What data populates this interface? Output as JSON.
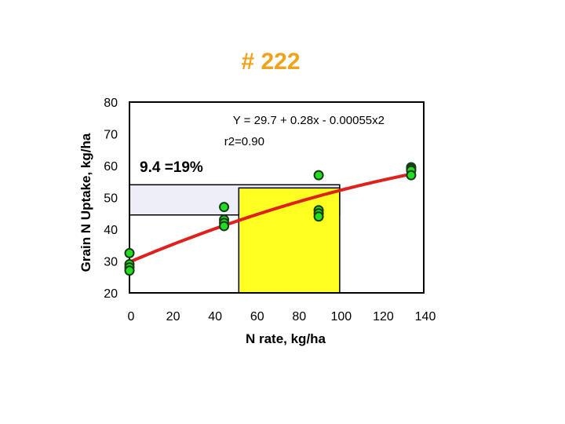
{
  "title": "# 222",
  "chart_data": {
    "type": "scatter",
    "title": "# 222",
    "xlabel": "N rate, kg/ha",
    "ylabel": "Grain N Uptake, kg/ha",
    "xlim": [
      0,
      140
    ],
    "ylim": [
      20,
      80
    ],
    "xticks": [
      0,
      20,
      40,
      60,
      80,
      100,
      120,
      140
    ],
    "yticks": [
      20,
      30,
      40,
      50,
      60,
      70,
      80
    ],
    "series": [
      {
        "points": [
          {
            "x": 0,
            "y": 32.5
          },
          {
            "x": 0,
            "y": 29
          },
          {
            "x": 0,
            "y": 28
          },
          {
            "x": 0,
            "y": 27
          },
          {
            "x": 45,
            "y": 47
          },
          {
            "x": 45,
            "y": 43
          },
          {
            "x": 45,
            "y": 42
          },
          {
            "x": 45,
            "y": 41
          },
          {
            "x": 90,
            "y": 57
          },
          {
            "x": 90,
            "y": 46
          },
          {
            "x": 90,
            "y": 45
          },
          {
            "x": 90,
            "y": 44
          },
          {
            "x": 134,
            "y": 59.5
          },
          {
            "x": 134,
            "y": 59
          },
          {
            "x": 134,
            "y": 58.5
          },
          {
            "x": 134,
            "y": 57
          }
        ]
      }
    ],
    "fit": {
      "a": 29.7,
      "b": 0.28,
      "c": -0.00055,
      "equation": "Y = 29.7 + 0.28x - 0.00055x2",
      "r2": "r2=0.90"
    },
    "annotation": "9.4 =19%",
    "shaded_regions": [
      {
        "x_range": [
          0,
          100
        ],
        "y_range": [
          44.5,
          54
        ],
        "color": "#eeeef8"
      },
      {
        "x_range": [
          52,
          100
        ],
        "y_range": [
          20,
          53
        ],
        "color": "#ffff22"
      }
    ],
    "colors": {
      "title": "#f0a21a",
      "fit_line": "#e0201c",
      "marker_fill": "#22dd22",
      "marker_edge": "#1a3a1a",
      "highlight": "#ffff22"
    },
    "grid": false,
    "legend": "none"
  }
}
